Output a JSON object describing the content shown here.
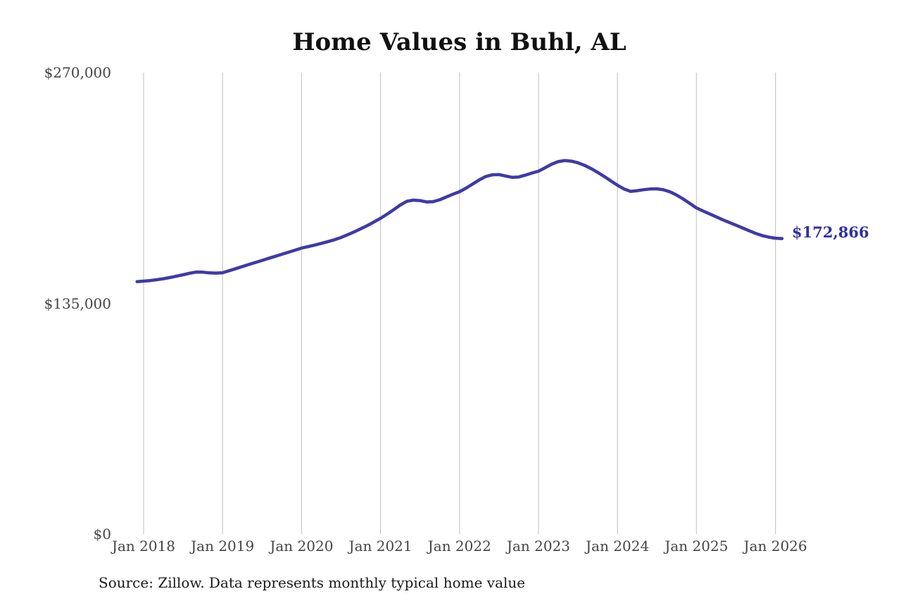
{
  "chart": {
    "title": "Home Values in Buhl, AL",
    "source": "Source: Zillow. Data represents monthly typical home value"
  },
  "chart_data": {
    "type": "line",
    "title": "Home Values in Buhl, AL",
    "series_name": "Monthly typical home value",
    "start_month": "Dec 2017",
    "end_month": "Feb 2026",
    "end_label": "$172,866",
    "latest_value": 172866,
    "ylim": [
      0,
      270000
    ],
    "y_tick_labels": [
      "$270,000",
      "$135,000",
      "$0"
    ],
    "x_tick_labels": [
      "Jan 2018",
      "Jan 2019",
      "Jan 2020",
      "Jan 2021",
      "Jan 2022",
      "Jan 2023",
      "Jan 2024",
      "Jan 2025",
      "Jan 2026"
    ],
    "grid": "vertical-only",
    "legend": "none",
    "line_color": "#3f3aa6",
    "label_color": "#312fa0",
    "grid_color": "#cccccc",
    "values": [
      147700,
      148000,
      148300,
      148800,
      149400,
      150100,
      150900,
      151700,
      152600,
      153300,
      153200,
      152800,
      152700,
      152900,
      154100,
      155300,
      156500,
      157700,
      158900,
      160100,
      161300,
      162500,
      163700,
      164900,
      166100,
      167300,
      168200,
      169100,
      170100,
      171100,
      172200,
      173500,
      175100,
      176800,
      178600,
      180500,
      182600,
      184700,
      187200,
      189800,
      192500,
      194700,
      195400,
      195100,
      194300,
      194500,
      195600,
      197200,
      198800,
      200300,
      202400,
      204800,
      207200,
      209200,
      210200,
      210300,
      209500,
      208700,
      208900,
      210000,
      211200,
      212300,
      214300,
      216400,
      217900,
      218500,
      218200,
      217200,
      215700,
      213800,
      211600,
      209200,
      206600,
      204100,
      201900,
      200500,
      200900,
      201500,
      201900,
      202000,
      201400,
      200200,
      198300,
      196000,
      193400,
      190800,
      189000,
      187300,
      185600,
      183900,
      182300,
      180700,
      179100,
      177500,
      175900,
      174600,
      173700,
      173100,
      172866
    ]
  }
}
